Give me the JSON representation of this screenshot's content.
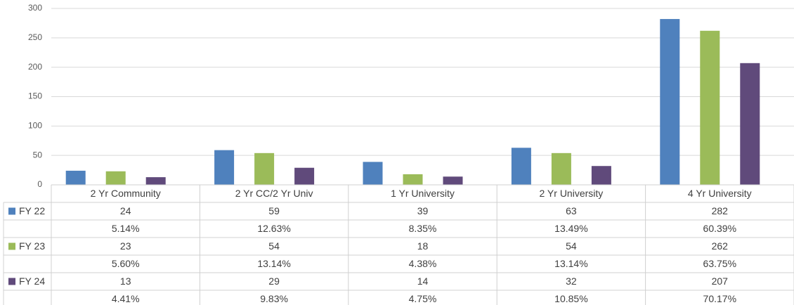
{
  "chart_data": {
    "type": "bar",
    "categories": [
      "2 Yr Community",
      "2 Yr CC/2 Yr Univ",
      "1 Yr University",
      "2 Yr University",
      "4 Yr University"
    ],
    "series": [
      {
        "name": "FY 22",
        "color": "#4f81bd",
        "values": [
          24,
          59,
          39,
          63,
          282
        ],
        "shares": [
          "5.14%",
          "12.63%",
          "8.35%",
          "13.49%",
          "60.39%"
        ]
      },
      {
        "name": "FY 23",
        "color": "#9bbb59",
        "values": [
          23,
          54,
          18,
          54,
          262
        ],
        "shares": [
          "5.60%",
          "13.14%",
          "4.38%",
          "13.14%",
          "63.75%"
        ]
      },
      {
        "name": "FY 24",
        "color": "#604a7b",
        "values": [
          13,
          29,
          14,
          32,
          207
        ],
        "shares": [
          "4.41%",
          "9.83%",
          "4.75%",
          "10.85%",
          "70.17%"
        ]
      }
    ],
    "ylim": [
      0,
      300
    ],
    "yticks": [
      0,
      50,
      100,
      150,
      200,
      250,
      300
    ],
    "grid": true
  }
}
